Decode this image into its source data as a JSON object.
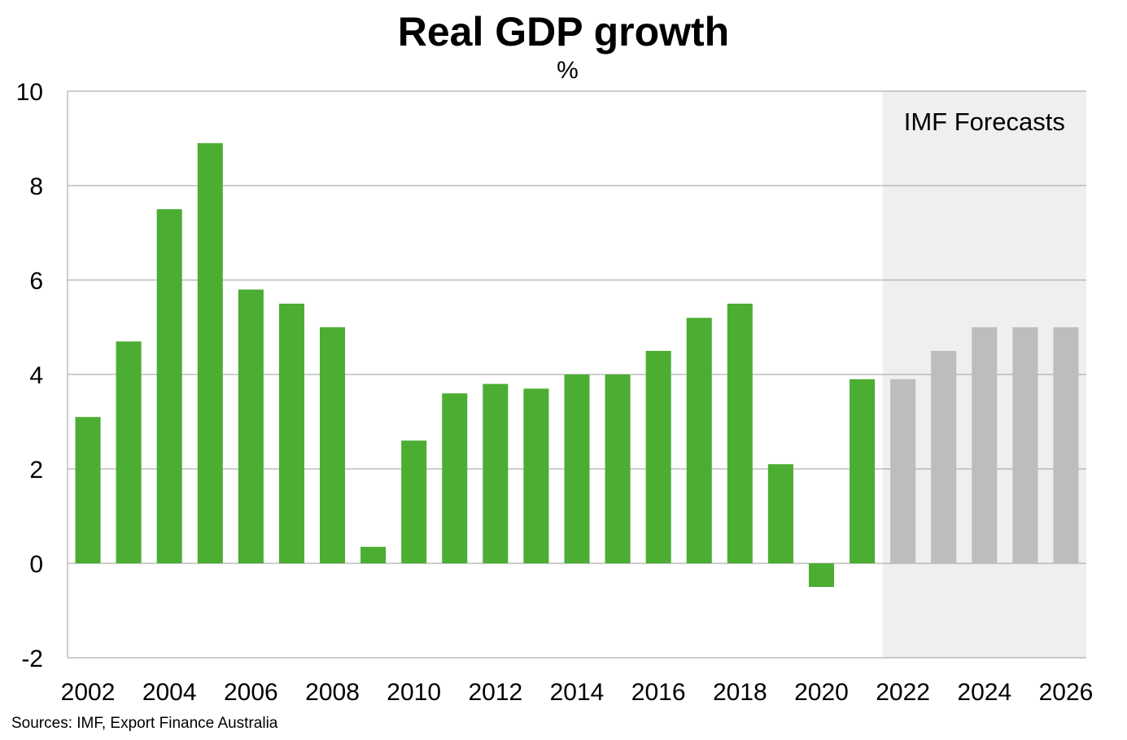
{
  "chart_data": {
    "type": "bar",
    "title": "Real GDP growth",
    "subtitle": "%",
    "xlabel": "",
    "ylabel": "",
    "ylim": [
      -2,
      10
    ],
    "yticks": [
      "10",
      "8",
      "6",
      "4",
      "2",
      "0",
      "-2"
    ],
    "x_tick_labels": [
      "2002",
      "2004",
      "2006",
      "2008",
      "2010",
      "2012",
      "2014",
      "2016",
      "2018",
      "2020",
      "2022",
      "2024",
      "2026"
    ],
    "categories": [
      2002,
      2003,
      2004,
      2005,
      2006,
      2007,
      2008,
      2009,
      2010,
      2011,
      2012,
      2013,
      2014,
      2015,
      2016,
      2017,
      2018,
      2019,
      2020,
      2021,
      2022,
      2023,
      2024,
      2025,
      2026
    ],
    "values": [
      3.1,
      4.7,
      7.5,
      8.9,
      5.8,
      5.5,
      5.0,
      0.35,
      2.6,
      3.6,
      3.8,
      3.7,
      4.0,
      4.0,
      4.5,
      5.2,
      5.5,
      2.1,
      -0.5,
      3.9,
      3.9,
      4.5,
      5.0,
      5.0,
      5.0
    ],
    "forecast_from": 2022,
    "forecast_label": "IMF Forecasts",
    "grid": true,
    "colors": {
      "actual": "#4cad33",
      "forecast": "#bdbdbd",
      "forecast_region": "#efefef",
      "gridline": "#9e9e9e"
    }
  },
  "source_note": "Sources: IMF, Export Finance Australia"
}
